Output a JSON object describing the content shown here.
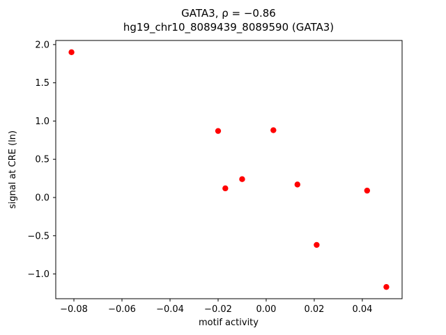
{
  "figure": {
    "title_line1": "GATA3, ρ = −0.86",
    "title_line2": "hg19_chr10_8089439_8089590 (GATA3)",
    "xlabel": "motif activity",
    "ylabel": "signal at CRE (ln)"
  },
  "chart_data": {
    "type": "scatter",
    "title": "GATA3, ρ = −0.86",
    "subtitle": "hg19_chr10_8089439_8089590 (GATA3)",
    "xlabel": "motif activity",
    "ylabel": "signal at CRE (ln)",
    "xlim": [
      -0.08755,
      0.05655
    ],
    "ylim": [
      -1.3235,
      2.0535
    ],
    "xticks": [
      -0.08,
      -0.06,
      -0.04,
      -0.02,
      0.0,
      0.02,
      0.04
    ],
    "xtick_labels": [
      "−0.08",
      "−0.06",
      "−0.04",
      "−0.02",
      "0.00",
      "0.02",
      "0.04"
    ],
    "yticks": [
      -1.0,
      -0.5,
      0.0,
      0.5,
      1.0,
      1.5,
      2.0
    ],
    "ytick_labels": [
      "−1.0",
      "−0.5",
      "0.0",
      "0.5",
      "1.0",
      "1.5",
      "2.0"
    ],
    "grid": false,
    "legend": null,
    "marker": "o",
    "marker_color": "#ff0000",
    "points": [
      {
        "x": -0.081,
        "y": 1.9
      },
      {
        "x": -0.02,
        "y": 0.87
      },
      {
        "x": -0.017,
        "y": 0.12
      },
      {
        "x": -0.01,
        "y": 0.24
      },
      {
        "x": 0.003,
        "y": 0.88
      },
      {
        "x": 0.013,
        "y": 0.17
      },
      {
        "x": 0.021,
        "y": -0.62
      },
      {
        "x": 0.042,
        "y": 0.09
      },
      {
        "x": 0.05,
        "y": -1.17
      }
    ]
  }
}
